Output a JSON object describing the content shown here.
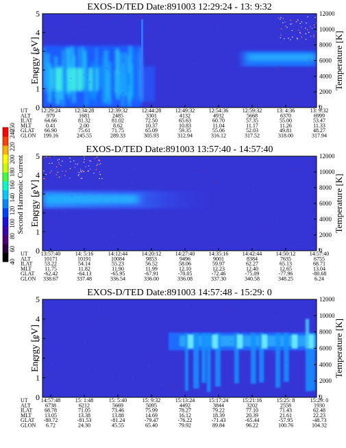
{
  "colorbar": {
    "label": "Second Harmonic Current",
    "ticks": [
      "40",
      "60",
      "80",
      "100",
      "120",
      "140",
      "160",
      "180",
      "200",
      "220",
      "240",
      "250"
    ],
    "colors": [
      "#000000",
      "#2a0040",
      "#4b007a",
      "#3a00b4",
      "#1a10d8",
      "#0040ff",
      "#0088ff",
      "#00c8ff",
      "#00ffc8",
      "#40ff40",
      "#c8ff00",
      "#ffff00",
      "#ffb000",
      "#ff4000",
      "#ff0000"
    ]
  },
  "panels": [
    {
      "title": "EXOS-D/TED   Date:891003  12:29:24 - 13: 9:32",
      "ylabel_left": "Energy [eV]",
      "ylabel_right": "Temperature [K]",
      "y_ticks": [
        "0",
        "1",
        "2",
        "3",
        "4",
        "5"
      ],
      "t_ticks": [
        "0",
        "2000",
        "4000",
        "6000",
        "8000",
        "10000",
        "12000"
      ],
      "row_labels": [
        "UT",
        "ALT",
        "ILAT",
        "MLT",
        "GLAT",
        "GLON"
      ],
      "columns": [
        [
          "12:29:24",
          "979",
          "64.66",
          "0.41",
          "66.90",
          "199.16"
        ],
        [
          "12:34:28",
          "1681",
          "81.32",
          "2.00",
          "75.61",
          "245.55"
        ],
        [
          "12:39:32",
          "2485",
          "81.02",
          "8.62",
          "71.75",
          "289.33"
        ],
        [
          "12:44:28",
          "3301",
          "72.50",
          "10.37",
          "65.09",
          "305.93"
        ],
        [
          "12:49:32",
          "4132",
          "65.63",
          "10.83",
          "59.35",
          "312.94"
        ],
        [
          "12:54:36",
          "4932",
          "60.70",
          "11.04",
          "55.06",
          "316.12"
        ],
        [
          "12:59:32",
          "5668",
          "57.35",
          "11.17",
          "52.03",
          "317.52"
        ],
        [
          "13: 4:36",
          "6370",
          "55.00",
          "11.26",
          "49.81",
          "318.00"
        ],
        [
          "13: 9:32",
          "6999",
          "53.47",
          "11.33",
          "48.27",
          "317.94"
        ]
      ]
    },
    {
      "title": "EXOS-D/TED   Date:891003  13:57:40 - 14:57:40",
      "ylabel_left": "Energy [eV]",
      "ylabel_right": "Temperature [K]",
      "y_ticks": [
        "0",
        "1",
        "2",
        "3",
        "4",
        "5"
      ],
      "t_ticks": [
        "0",
        "2000",
        "4000",
        "6000",
        "8000",
        "10000",
        "12000"
      ],
      "row_labels": [
        "UT",
        "ALT",
        "ILAT",
        "MLT",
        "GLAT",
        "GLON"
      ],
      "columns": [
        [
          "13:57:40",
          "10171",
          "53.22",
          "11.75",
          "-62.42",
          "338.67"
        ],
        [
          "14: 5:16",
          "10191",
          "54.14",
          "11.82",
          "-64.13",
          "337.48"
        ],
        [
          "14:12:44",
          "10084",
          "55.23",
          "11.90",
          "-65.95",
          "336.54"
        ],
        [
          "14:20:12",
          "9853",
          "56.52",
          "11.99",
          "-67.91",
          "336.00"
        ],
        [
          "14:27:40",
          "9496",
          "58.06",
          "12.10",
          "-70.05",
          "336.08"
        ],
        [
          "14:35:16",
          "9001",
          "59.97",
          "12.23",
          "-72.46",
          "337.30"
        ],
        [
          "14:42:44",
          "8384",
          "62.27",
          "12.40",
          "-75.09",
          "340.58"
        ],
        [
          "14:50:12",
          "7635",
          "65.13",
          "12.65",
          "-77.96",
          "348.25"
        ],
        [
          "14:57:40",
          "6755",
          "68.71",
          "13.04",
          "-80.68",
          "6.24"
        ]
      ]
    },
    {
      "title": "EXOS-D/TED   Date:891003  14:57:48 - 15:29: 0",
      "ylabel_left": "Energy [eV]",
      "ylabel_right": "Temperature [K]",
      "y_ticks": [
        "0",
        "1",
        "2",
        "3",
        "4",
        "5"
      ],
      "t_ticks": [
        "0",
        "2000",
        "4000",
        "6000",
        "8000",
        "10000",
        "12000"
      ],
      "row_labels": [
        "UT",
        "ALT",
        "ILAT",
        "MLT",
        "GLAT",
        "GLON"
      ],
      "columns": [
        [
          "14:57:48",
          "6738",
          "68.78",
          "13.05",
          "-80.72",
          "6.72"
        ],
        [
          "15: 1:48",
          "6212",
          "71.05",
          "13.38",
          "-81.53",
          "24.30"
        ],
        [
          "15: 5:40",
          "5669",
          "73.46",
          "13.88",
          "-81.24",
          "45.55"
        ],
        [
          "15: 9:32",
          "5095",
          "75.99",
          "14.69",
          "-79.47",
          "65.40"
        ],
        [
          "15:13:24",
          "4492",
          "78.27",
          "16.12",
          "-76.22",
          "79.92"
        ],
        [
          "15:17:24",
          "3844",
          "79.22",
          "18.39",
          "-71.43",
          "89.84"
        ],
        [
          "15:21:16",
          "3202",
          "77.10",
          "20.39",
          "-65.44",
          "96.22"
        ],
        [
          "15:25: 8",
          "2558",
          "71.43",
          "21.61",
          "-57.95",
          "100.76"
        ],
        [
          "15:29: 0",
          "1930",
          "62.48",
          "22.23",
          "-48.73",
          "104.32"
        ]
      ]
    }
  ],
  "chart_data": [
    {
      "type": "heatmap",
      "title": "EXOS-D/TED   Date:891003  12:29:24 - 13: 9:32",
      "ylabel": "Energy [eV]",
      "ylabel_right": "Temperature [K]",
      "ylim": [
        0,
        5
      ],
      "ylim_right": [
        0,
        12000
      ],
      "x": [
        "12:29:24",
        "12:34:28",
        "12:39:32",
        "12:44:28",
        "12:49:32",
        "12:54:36",
        "12:59:32",
        "13: 4:36",
        "13: 9:32"
      ],
      "colorbar_range": [
        40,
        250
      ],
      "colorbar_label": "Second Harmonic Current"
    },
    {
      "type": "heatmap",
      "title": "EXOS-D/TED   Date:891003  13:57:40 - 14:57:40",
      "ylabel": "Energy [eV]",
      "ylabel_right": "Temperature [K]",
      "ylim": [
        0,
        5
      ],
      "ylim_right": [
        0,
        12000
      ],
      "x": [
        "13:57:40",
        "14: 5:16",
        "14:12:44",
        "14:20:12",
        "14:27:40",
        "14:35:16",
        "14:42:44",
        "14:50:12",
        "14:57:40"
      ],
      "colorbar_range": [
        40,
        250
      ],
      "colorbar_label": "Second Harmonic Current"
    },
    {
      "type": "heatmap",
      "title": "EXOS-D/TED   Date:891003  14:57:48 - 15:29: 0",
      "ylabel": "Energy [eV]",
      "ylabel_right": "Temperature [K]",
      "ylim": [
        0,
        5
      ],
      "ylim_right": [
        0,
        12000
      ],
      "x": [
        "14:57:48",
        "15: 1:48",
        "15: 5:40",
        "15: 9:32",
        "15:13:24",
        "15:17:24",
        "15:21:16",
        "15:25: 8",
        "15:29: 0"
      ],
      "colorbar_range": [
        40,
        250
      ],
      "colorbar_label": "Second Harmonic Current"
    }
  ]
}
